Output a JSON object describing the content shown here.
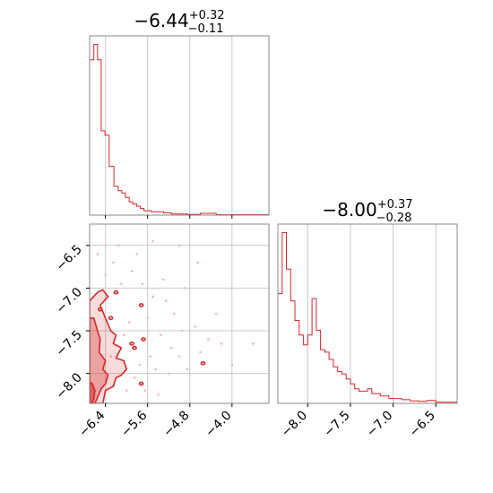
{
  "chart_data": [
    {
      "type": "histogram",
      "panel": "top-left",
      "title": {
        "main": "−6.44",
        "sup": "+0.32",
        "sub": "−0.11"
      },
      "xlim": [
        -6.7,
        -3.3
      ],
      "x_tick_values": [
        -6.4,
        -5.6,
        -4.8,
        -4.0
      ],
      "grid": true,
      "bins": [
        {
          "x0": -6.7,
          "x1": -6.62,
          "count": 70
        },
        {
          "x0": -6.62,
          "x1": -6.55,
          "count": 77
        },
        {
          "x0": -6.55,
          "x1": -6.48,
          "count": 70
        },
        {
          "x0": -6.48,
          "x1": -6.41,
          "count": 38
        },
        {
          "x0": -6.41,
          "x1": -6.33,
          "count": 36
        },
        {
          "x0": -6.33,
          "x1": -6.24,
          "count": 22
        },
        {
          "x0": -6.24,
          "x1": -6.16,
          "count": 13
        },
        {
          "x0": -6.16,
          "x1": -6.09,
          "count": 11
        },
        {
          "x0": -6.09,
          "x1": -6.02,
          "count": 10
        },
        {
          "x0": -6.02,
          "x1": -5.95,
          "count": 8
        },
        {
          "x0": -5.95,
          "x1": -5.88,
          "count": 6
        },
        {
          "x0": -5.88,
          "x1": -5.81,
          "count": 5
        },
        {
          "x0": -5.81,
          "x1": -5.74,
          "count": 4
        },
        {
          "x0": -5.74,
          "x1": -5.67,
          "count": 3
        },
        {
          "x0": -5.67,
          "x1": -5.53,
          "count": 2
        },
        {
          "x0": -5.53,
          "x1": -5.3,
          "count": 1.5
        },
        {
          "x0": -5.3,
          "x1": -5.15,
          "count": 1
        },
        {
          "x0": -5.15,
          "x1": -4.85,
          "count": 0.5
        },
        {
          "x0": -4.85,
          "x1": -4.6,
          "count": 0.3
        },
        {
          "x0": -4.6,
          "x1": -4.3,
          "count": 0.8
        },
        {
          "x0": -4.3,
          "x1": -3.3,
          "count": 0.2
        }
      ]
    },
    {
      "type": "histogram",
      "panel": "bottom-right",
      "title": {
        "main": "−8.00",
        "sup": "+0.37",
        "sub": "−0.28"
      },
      "xlim": [
        -8.35,
        -6.25
      ],
      "x_tick_values": [
        -8.0,
        -7.5,
        -7.0,
        -6.5
      ],
      "x_tick_labels": [
        "−8.0",
        "−7.5",
        "−7.0",
        "−6.5"
      ],
      "grid": true,
      "bins": [
        {
          "x0": -8.35,
          "x1": -8.3,
          "count": 45
        },
        {
          "x0": -8.3,
          "x1": -8.25,
          "count": 70
        },
        {
          "x0": -8.25,
          "x1": -8.2,
          "count": 55
        },
        {
          "x0": -8.2,
          "x1": -8.15,
          "count": 42
        },
        {
          "x0": -8.15,
          "x1": -8.1,
          "count": 34
        },
        {
          "x0": -8.1,
          "x1": -8.05,
          "count": 28
        },
        {
          "x0": -8.05,
          "x1": -8.0,
          "count": 24
        },
        {
          "x0": -8.0,
          "x1": -7.95,
          "count": 28
        },
        {
          "x0": -7.95,
          "x1": -7.9,
          "count": 43
        },
        {
          "x0": -7.9,
          "x1": -7.85,
          "count": 30
        },
        {
          "x0": -7.85,
          "x1": -7.8,
          "count": 22
        },
        {
          "x0": -7.8,
          "x1": -7.75,
          "count": 21
        },
        {
          "x0": -7.75,
          "x1": -7.7,
          "count": 18
        },
        {
          "x0": -7.7,
          "x1": -7.65,
          "count": 15
        },
        {
          "x0": -7.65,
          "x1": -7.6,
          "count": 13
        },
        {
          "x0": -7.6,
          "x1": -7.55,
          "count": 12
        },
        {
          "x0": -7.55,
          "x1": -7.5,
          "count": 10
        },
        {
          "x0": -7.5,
          "x1": -7.45,
          "count": 8
        },
        {
          "x0": -7.45,
          "x1": -7.4,
          "count": 6
        },
        {
          "x0": -7.4,
          "x1": -7.35,
          "count": 5
        },
        {
          "x0": -7.35,
          "x1": -7.3,
          "count": 5
        },
        {
          "x0": -7.3,
          "x1": -7.25,
          "count": 6
        },
        {
          "x0": -7.25,
          "x1": -7.2,
          "count": 4
        },
        {
          "x0": -7.2,
          "x1": -7.15,
          "count": 4
        },
        {
          "x0": -7.15,
          "x1": -7.1,
          "count": 3
        },
        {
          "x0": -7.1,
          "x1": -7.05,
          "count": 3
        },
        {
          "x0": -7.05,
          "x1": -7.0,
          "count": 2
        },
        {
          "x0": -7.0,
          "x1": -6.9,
          "count": 2
        },
        {
          "x0": -6.9,
          "x1": -6.8,
          "count": 1.5
        },
        {
          "x0": -6.8,
          "x1": -6.7,
          "count": 1
        },
        {
          "x0": -6.7,
          "x1": -6.6,
          "count": 0.8
        },
        {
          "x0": -6.6,
          "x1": -6.5,
          "count": 1.2
        },
        {
          "x0": -6.5,
          "x1": -6.25,
          "count": 0.5
        }
      ]
    },
    {
      "type": "scatter",
      "panel": "bottom-left",
      "xlim": [
        -6.7,
        -3.3
      ],
      "ylim": [
        -8.35,
        -6.25
      ],
      "x_tick_values": [
        -6.4,
        -5.6,
        -4.8,
        -4.0
      ],
      "x_tick_labels": [
        "−6.4",
        "−5.6",
        "−4.8",
        "−4.0"
      ],
      "y_tick_values": [
        -8.0,
        -7.5,
        -7.0,
        -6.5
      ],
      "y_tick_labels": [
        "−8.0",
        "−7.5",
        "−7.0",
        "−6.5"
      ],
      "grid": true,
      "contours": [
        {
          "level": "outer",
          "points": [
            [
              -6.7,
              -8.35
            ],
            [
              -6.7,
              -7.15
            ],
            [
              -6.55,
              -7.05
            ],
            [
              -6.45,
              -7.02
            ],
            [
              -6.35,
              -7.1
            ],
            [
              -6.5,
              -7.2
            ],
            [
              -6.4,
              -7.35
            ],
            [
              -6.3,
              -7.5
            ],
            [
              -6.2,
              -7.55
            ],
            [
              -6.25,
              -7.65
            ],
            [
              -6.1,
              -7.7
            ],
            [
              -6.2,
              -7.82
            ],
            [
              -6.05,
              -7.85
            ],
            [
              -6.0,
              -7.95
            ],
            [
              -6.1,
              -8.02
            ],
            [
              -6.2,
              -8.05
            ],
            [
              -6.25,
              -8.15
            ],
            [
              -6.4,
              -8.2
            ],
            [
              -6.45,
              -8.35
            ]
          ]
        },
        {
          "level": "middle",
          "points": [
            [
              -6.7,
              -8.35
            ],
            [
              -6.7,
              -7.35
            ],
            [
              -6.62,
              -7.35
            ],
            [
              -6.55,
              -7.5
            ],
            [
              -6.5,
              -7.6
            ],
            [
              -6.52,
              -7.75
            ],
            [
              -6.4,
              -7.85
            ],
            [
              -6.45,
              -7.95
            ],
            [
              -6.35,
              -8.02
            ],
            [
              -6.4,
              -8.12
            ],
            [
              -6.48,
              -8.18
            ],
            [
              -6.55,
              -8.28
            ],
            [
              -6.6,
              -8.35
            ]
          ]
        },
        {
          "level": "inner",
          "points": [
            [
              -6.7,
              -8.35
            ],
            [
              -6.7,
              -8.1
            ],
            [
              -6.65,
              -8.12
            ],
            [
              -6.6,
              -8.2
            ],
            [
              -6.62,
              -8.3
            ],
            [
              -6.66,
              -8.35
            ]
          ]
        }
      ],
      "islands": [
        {
          "x": -6.5,
          "y": -7.25
        },
        {
          "x": -6.2,
          "y": -7.05
        },
        {
          "x": -5.72,
          "y": -7.2
        },
        {
          "x": -5.68,
          "y": -7.6
        },
        {
          "x": -5.9,
          "y": -7.65
        },
        {
          "x": -5.85,
          "y": -7.7
        },
        {
          "x": -5.72,
          "y": -8.12
        },
        {
          "x": -4.55,
          "y": -7.88
        },
        {
          "x": -6.3,
          "y": -7.35
        }
      ],
      "points": [
        {
          "x": -5.8,
          "y": -6.6
        },
        {
          "x": -5.5,
          "y": -6.45
        },
        {
          "x": -5.0,
          "y": -6.5
        },
        {
          "x": -4.65,
          "y": -6.7
        },
        {
          "x": -5.3,
          "y": -6.9
        },
        {
          "x": -4.9,
          "y": -7.0
        },
        {
          "x": -5.5,
          "y": -7.1
        },
        {
          "x": -5.1,
          "y": -7.3
        },
        {
          "x": -4.7,
          "y": -7.45
        },
        {
          "x": -5.35,
          "y": -7.55
        },
        {
          "x": -4.45,
          "y": -7.6
        },
        {
          "x": -4.2,
          "y": -7.65
        },
        {
          "x": -3.6,
          "y": -7.65
        },
        {
          "x": -5.0,
          "y": -7.8
        },
        {
          "x": -4.85,
          "y": -7.95
        },
        {
          "x": -5.2,
          "y": -8.0
        },
        {
          "x": -5.9,
          "y": -6.8
        },
        {
          "x": -6.1,
          "y": -6.95
        },
        {
          "x": -5.95,
          "y": -7.4
        },
        {
          "x": -6.05,
          "y": -7.55
        },
        {
          "x": -5.55,
          "y": -7.8
        },
        {
          "x": -5.45,
          "y": -7.95
        },
        {
          "x": -5.65,
          "y": -8.2
        },
        {
          "x": -5.4,
          "y": -8.25
        },
        {
          "x": -5.15,
          "y": -7.7
        },
        {
          "x": -4.3,
          "y": -7.3
        },
        {
          "x": -6.25,
          "y": -6.7
        },
        {
          "x": -6.4,
          "y": -6.85
        },
        {
          "x": -6.3,
          "y": -7.8
        },
        {
          "x": -6.0,
          "y": -8.2
        },
        {
          "x": -5.85,
          "y": -8.05
        },
        {
          "x": -5.75,
          "y": -7.9
        },
        {
          "x": -5.6,
          "y": -7.35
        },
        {
          "x": -5.25,
          "y": -7.15
        },
        {
          "x": -4.95,
          "y": -7.5
        },
        {
          "x": -4.6,
          "y": -7.75
        },
        {
          "x": -6.55,
          "y": -6.6
        },
        {
          "x": -6.15,
          "y": -6.5
        },
        {
          "x": -5.7,
          "y": -6.95
        },
        {
          "x": -4.0,
          "y": -7.9
        }
      ]
    }
  ]
}
